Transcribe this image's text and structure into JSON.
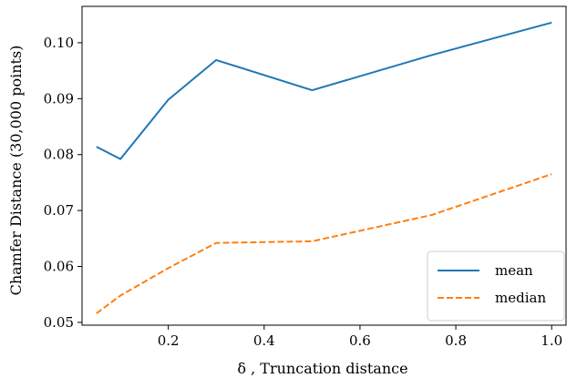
{
  "chart_data": {
    "type": "line",
    "xlabel": "δ , Truncation distance",
    "ylabel": "Chamfer Distance (30,000 points)",
    "xlim": [
      0.02,
      1.03
    ],
    "ylim": [
      0.0495,
      0.1065
    ],
    "xticks": [
      0.2,
      0.4,
      0.6,
      0.8,
      1.0
    ],
    "xtick_labels": [
      "0.2",
      "0.4",
      "0.6",
      "0.8",
      "1.0"
    ],
    "yticks": [
      0.05,
      0.06,
      0.07,
      0.08,
      0.09,
      0.1
    ],
    "ytick_labels": [
      "0.05",
      "0.06",
      "0.07",
      "0.08",
      "0.09",
      "0.10"
    ],
    "grid": false,
    "legend_position": "lower-right",
    "series": [
      {
        "name": "mean",
        "color": "#1f77b4",
        "style": "solid",
        "x": [
          0.05,
          0.1,
          0.2,
          0.3,
          0.5,
          0.75,
          1.0
        ],
        "y": [
          0.0814,
          0.0792,
          0.0898,
          0.0969,
          0.0915,
          0.0978,
          0.1036
        ]
      },
      {
        "name": "median",
        "color": "#ff7f0e",
        "style": "dashed",
        "x": [
          0.05,
          0.1,
          0.2,
          0.3,
          0.5,
          0.75,
          1.0
        ],
        "y": [
          0.0516,
          0.0548,
          0.0597,
          0.0642,
          0.0645,
          0.0692,
          0.0765
        ]
      }
    ]
  }
}
